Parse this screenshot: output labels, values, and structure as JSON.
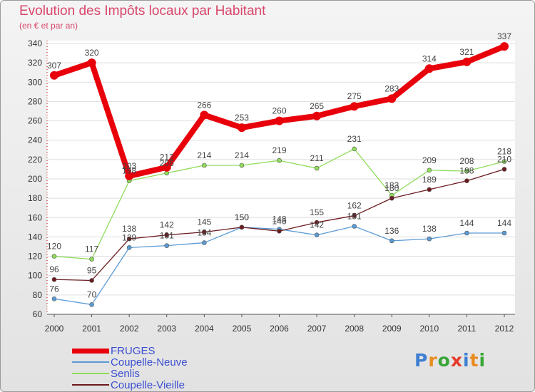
{
  "chart_data": {
    "type": "line",
    "title": "Evolution des Impôts locaux par Habitant",
    "subtitle": "(en € et par an)",
    "categories": [
      "2000",
      "2001",
      "2002",
      "2003",
      "2004",
      "2005",
      "2006",
      "2007",
      "2008",
      "2009",
      "2010",
      "2011",
      "2012"
    ],
    "ylim": [
      60,
      340
    ],
    "yticks": [
      60,
      80,
      100,
      120,
      140,
      160,
      180,
      200,
      220,
      240,
      260,
      280,
      300,
      320,
      340
    ],
    "series": [
      {
        "name": "FRUGES",
        "color": "#e8000b",
        "values": [
          307,
          320,
          203,
          212,
          266,
          253,
          260,
          265,
          275,
          283,
          314,
          321,
          337
        ]
      },
      {
        "name": "Coupelle-Neuve",
        "color": "#5b9bd5",
        "values": [
          76,
          70,
          129,
          131,
          134,
          150,
          148,
          142,
          151,
          136,
          138,
          144,
          144
        ]
      },
      {
        "name": "Senlis",
        "color": "#8fdc5a",
        "values": [
          120,
          117,
          198,
          206,
          214,
          214,
          219,
          211,
          231,
          183,
          209,
          208,
          218
        ]
      },
      {
        "name": "Coupelle-Vieille",
        "color": "#6b1a1f",
        "values": [
          96,
          95,
          138,
          142,
          145,
          150,
          146,
          155,
          162,
          180,
          189,
          198,
          210
        ]
      }
    ]
  },
  "labels": {
    "FRUGES": [
      "307",
      "320",
      "203",
      "212",
      "266",
      "253",
      "260",
      "265",
      "275",
      "283",
      "314",
      "321",
      "337"
    ],
    "Coupelle-Neuve": [
      "76",
      "70",
      "129",
      "131",
      "134",
      "150",
      "148",
      "142",
      "151",
      "136",
      "138",
      "144",
      "144"
    ],
    "Senlis": [
      "120",
      "117",
      "198",
      "206",
      "214",
      "214",
      "219",
      "211",
      "231",
      "183",
      "209",
      "208",
      "218"
    ],
    "Coupelle-Vieille": [
      "96",
      "95",
      "138",
      "142",
      "145",
      "150",
      "146",
      "155",
      "162",
      "180",
      "189",
      "198",
      "210"
    ]
  },
  "legend": [
    "FRUGES",
    "Coupelle-Neuve",
    "Senlis",
    "Coupelle-Vieille"
  ],
  "logo": {
    "text": "Proxiti",
    "letter_colors": [
      "#3d7fd1",
      "#e98b1f",
      "#3aa637",
      "#e53b2b",
      "#3d7fd1",
      "#e98b1f",
      "#3aa637"
    ]
  }
}
